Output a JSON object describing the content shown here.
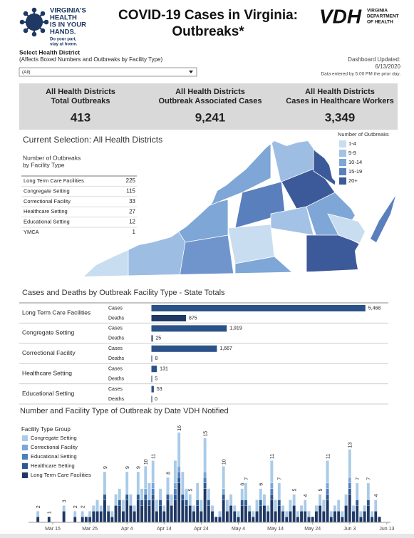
{
  "header": {
    "logo": [
      "VIRGINIA'S",
      "HEALTH",
      "IS IN YOUR",
      "HANDS."
    ],
    "logo_tagline": [
      "Do your part,",
      "stay at home."
    ],
    "title": [
      "COVID-19 Cases in Virginia:",
      "Outbreaks*"
    ],
    "agency": "VDH",
    "agency_name": [
      "VIRGINIA",
      "DEPARTMENT",
      "OF HEALTH"
    ]
  },
  "selector": {
    "label": "Select Health District",
    "hint": "(Affects Boxed Numbers and Outbreaks by Facility Type)",
    "value": "(All)"
  },
  "updated": {
    "label": "Dashboard Updated:",
    "date": "6/13/2020",
    "note": "Data entered by 5:00 PM the prior day."
  },
  "kpis": [
    {
      "label": [
        "All Health Districts",
        "Total Outbreaks"
      ],
      "value": "413"
    },
    {
      "label": [
        "All Health Districts",
        "Outbreak Associated Cases"
      ],
      "value": "9,241"
    },
    {
      "label": [
        "All Health Districts",
        "Cases in Healthcare Workers"
      ],
      "value": "3,349"
    }
  ],
  "map": {
    "title": "Current Selection: All Health Districts",
    "table_title": [
      "Number of Outbreaks",
      "by Facility Type"
    ],
    "rows": [
      [
        "Long Term Care Facilities",
        "225"
      ],
      [
        "Congregate Setting",
        "115"
      ],
      [
        "Correctional Facility",
        "33"
      ],
      [
        "Healthcare Setting",
        "27"
      ],
      [
        "Educational Setting",
        "12"
      ],
      [
        "YMCA",
        "1"
      ]
    ],
    "legend_title": "Number of Outbreaks",
    "legend": [
      {
        "label": "1-4",
        "color": "#c9ddf0"
      },
      {
        "label": "5-9",
        "color": "#a3c2e6"
      },
      {
        "label": "10-14",
        "color": "#7ea6d6"
      },
      {
        "label": "15-19",
        "color": "#5a7fbd"
      },
      {
        "label": "20+",
        "color": "#3c5a99"
      }
    ]
  },
  "chart_data": [
    {
      "type": "bar",
      "orientation": "horizontal",
      "title": "Cases and Deaths by Outbreak Facility Type - State Totals",
      "categories": [
        "Long Term Care Facilities",
        "Congregate Setting",
        "Correctional Facility",
        "Healthcare Setting",
        "Educational Setting"
      ],
      "series": [
        {
          "name": "Cases",
          "color": "#2b5189",
          "values": [
            5468,
            1919,
            1667,
            131,
            53
          ],
          "value_labels": [
            "5,468",
            "1,919",
            "1,667",
            "131",
            "53"
          ]
        },
        {
          "name": "Deaths",
          "color": "#1f3864",
          "values": [
            875,
            25,
            8,
            5,
            0
          ],
          "value_labels": [
            "875",
            "25",
            "8",
            "5",
            "0"
          ]
        }
      ],
      "xlim": [
        0,
        5800
      ]
    },
    {
      "type": "bar",
      "stacked": true,
      "title": "Number and Facility Type of Outbreak by Date VDH Notified",
      "legend_title": "Facility Type Group",
      "categories": [
        "Mar 10",
        "Mar 11",
        "Mar 12",
        "Mar 13",
        "Mar 14",
        "Mar 15",
        "Mar 16",
        "Mar 17",
        "Mar 18",
        "Mar 19",
        "Mar 20",
        "Mar 21",
        "Mar 22",
        "Mar 23",
        "Mar 24",
        "Mar 25",
        "Mar 26",
        "Mar 27",
        "Mar 28",
        "Mar 29",
        "Mar 30",
        "Mar 31",
        "Apr 1",
        "Apr 2",
        "Apr 3",
        "Apr 4",
        "Apr 5",
        "Apr 6",
        "Apr 7",
        "Apr 8",
        "Apr 9",
        "Apr 10",
        "Apr 11",
        "Apr 12",
        "Apr 13",
        "Apr 14",
        "Apr 15",
        "Apr 16",
        "Apr 17",
        "Apr 18",
        "Apr 19",
        "Apr 20",
        "Apr 21",
        "Apr 22",
        "Apr 23",
        "Apr 24",
        "Apr 25",
        "Apr 26",
        "Apr 27",
        "Apr 28",
        "Apr 29",
        "Apr 30",
        "May 1",
        "May 2",
        "May 3",
        "May 4",
        "May 5",
        "May 6",
        "May 7",
        "May 8",
        "May 9",
        "May 10",
        "May 11",
        "May 12",
        "May 13",
        "May 14",
        "May 15",
        "May 16",
        "May 17",
        "May 18",
        "May 19",
        "May 20",
        "May 21",
        "May 22",
        "May 23",
        "May 24",
        "May 25",
        "May 26",
        "May 27",
        "May 28",
        "May 29",
        "May 30",
        "May 31",
        "Jun 1",
        "Jun 2",
        "Jun 3",
        "Jun 4",
        "Jun 5",
        "Jun 6",
        "Jun 7",
        "Jun 8",
        "Jun 9",
        "Jun 10",
        "Jun 11",
        "Jun 12",
        "Jun 13"
      ],
      "series": [
        {
          "name": "Congregate Setting",
          "color": "#a9cbe8",
          "values": [
            0,
            1,
            0,
            0,
            0,
            0,
            0,
            0,
            1,
            0,
            0,
            1,
            0,
            1,
            0,
            1,
            1,
            2,
            1,
            4,
            1,
            1,
            2,
            2,
            2,
            4,
            2,
            1,
            4,
            2,
            4,
            3,
            4,
            2,
            2,
            1,
            3,
            2,
            4,
            6,
            4,
            2,
            2,
            1,
            3,
            2,
            6,
            2,
            1,
            0,
            1,
            4,
            2,
            2,
            1,
            1,
            2,
            3,
            1,
            1,
            2,
            2,
            2,
            1,
            4,
            2,
            3,
            1,
            1,
            2,
            2,
            1,
            1,
            2,
            1,
            0,
            1,
            2,
            2,
            4,
            1,
            1,
            2,
            1,
            2,
            5,
            1,
            3,
            1,
            1,
            3,
            1,
            2,
            0,
            0,
            0
          ]
        },
        {
          "name": "Correctional Facility",
          "color": "#7ba7d7",
          "values": [
            0,
            0,
            0,
            0,
            0,
            0,
            0,
            0,
            0,
            0,
            0,
            0,
            0,
            0,
            0,
            0,
            0,
            0,
            0,
            0,
            0,
            0,
            0,
            0,
            0,
            0,
            0,
            0,
            0,
            0,
            1,
            0,
            1,
            0,
            0,
            0,
            0,
            0,
            1,
            1,
            0,
            0,
            0,
            0,
            0,
            0,
            1,
            0,
            0,
            0,
            0,
            1,
            0,
            0,
            0,
            0,
            0,
            0,
            0,
            0,
            0,
            0,
            0,
            0,
            1,
            0,
            0,
            0,
            0,
            0,
            0,
            0,
            0,
            0,
            0,
            0,
            0,
            0,
            0,
            1,
            0,
            0,
            0,
            0,
            0,
            1,
            0,
            0,
            0,
            0,
            0,
            0,
            0,
            0,
            0,
            0
          ]
        },
        {
          "name": "Educational Setting",
          "color": "#4f7fbf",
          "values": [
            0,
            0,
            0,
            0,
            0,
            0,
            0,
            0,
            0,
            0,
            0,
            0,
            0,
            0,
            0,
            0,
            0,
            0,
            0,
            0,
            0,
            0,
            0,
            0,
            0,
            0,
            0,
            0,
            0,
            0,
            0,
            0,
            1,
            0,
            0,
            0,
            0,
            0,
            1,
            1,
            0,
            0,
            0,
            0,
            0,
            0,
            1,
            0,
            0,
            0,
            0,
            0,
            0,
            0,
            0,
            0,
            0,
            0,
            0,
            0,
            0,
            0,
            0,
            0,
            1,
            0,
            0,
            0,
            0,
            0,
            0,
            0,
            0,
            0,
            0,
            0,
            0,
            0,
            0,
            1,
            0,
            0,
            0,
            0,
            0,
            1,
            0,
            0,
            0,
            0,
            0,
            0,
            0,
            0,
            0,
            0
          ]
        },
        {
          "name": "Healthcare Setting",
          "color": "#2e5a94",
          "values": [
            0,
            0,
            0,
            0,
            0,
            0,
            0,
            0,
            0,
            0,
            0,
            0,
            0,
            0,
            0,
            0,
            0,
            0,
            0,
            1,
            0,
            0,
            0,
            1,
            0,
            1,
            0,
            0,
            1,
            1,
            1,
            1,
            1,
            0,
            1,
            0,
            1,
            0,
            1,
            1,
            1,
            1,
            0,
            0,
            1,
            0,
            1,
            1,
            0,
            0,
            0,
            1,
            0,
            0,
            0,
            0,
            1,
            1,
            0,
            0,
            0,
            1,
            0,
            0,
            1,
            0,
            1,
            0,
            0,
            0,
            0,
            0,
            0,
            0,
            0,
            0,
            0,
            0,
            0,
            1,
            0,
            0,
            0,
            0,
            0,
            1,
            0,
            1,
            0,
            0,
            1,
            0,
            0,
            0,
            0,
            0
          ]
        },
        {
          "name": "Long Term Care Facilities",
          "color": "#1f3864",
          "values": [
            0,
            1,
            0,
            0,
            1,
            0,
            0,
            0,
            2,
            0,
            0,
            1,
            0,
            1,
            1,
            1,
            2,
            2,
            2,
            4,
            2,
            1,
            3,
            3,
            2,
            4,
            3,
            2,
            4,
            3,
            4,
            3,
            4,
            2,
            3,
            2,
            4,
            3,
            4,
            7,
            4,
            3,
            3,
            2,
            3,
            2,
            6,
            3,
            2,
            1,
            1,
            4,
            2,
            3,
            2,
            1,
            3,
            3,
            2,
            1,
            2,
            3,
            3,
            2,
            4,
            2,
            3,
            2,
            1,
            2,
            3,
            1,
            2,
            2,
            1,
            1,
            2,
            3,
            2,
            4,
            1,
            2,
            2,
            1,
            3,
            5,
            2,
            3,
            1,
            2,
            3,
            1,
            2,
            1,
            0,
            0
          ]
        }
      ],
      "totals": [
        null,
        2,
        null,
        null,
        1,
        null,
        null,
        null,
        3,
        null,
        null,
        2,
        null,
        2,
        null,
        null,
        null,
        null,
        null,
        9,
        null,
        null,
        null,
        null,
        null,
        9,
        null,
        null,
        9,
        null,
        10,
        null,
        11,
        null,
        null,
        null,
        8,
        null,
        null,
        16,
        null,
        null,
        5,
        null,
        null,
        null,
        15,
        null,
        null,
        null,
        null,
        10,
        null,
        null,
        null,
        null,
        6,
        7,
        null,
        null,
        null,
        6,
        null,
        null,
        11,
        null,
        7,
        null,
        null,
        null,
        5,
        null,
        null,
        4,
        null,
        null,
        null,
        5,
        null,
        11,
        null,
        null,
        null,
        null,
        null,
        13,
        null,
        7,
        null,
        null,
        7,
        null,
        4,
        null,
        null,
        null
      ],
      "ylim": [
        0,
        17
      ],
      "xticks": [
        "Mar 15",
        "Mar 25",
        "Apr 4",
        "Apr 14",
        "Apr 24",
        "May 4",
        "May 14",
        "May 24",
        "Jun 3",
        "Jun 13"
      ]
    }
  ]
}
